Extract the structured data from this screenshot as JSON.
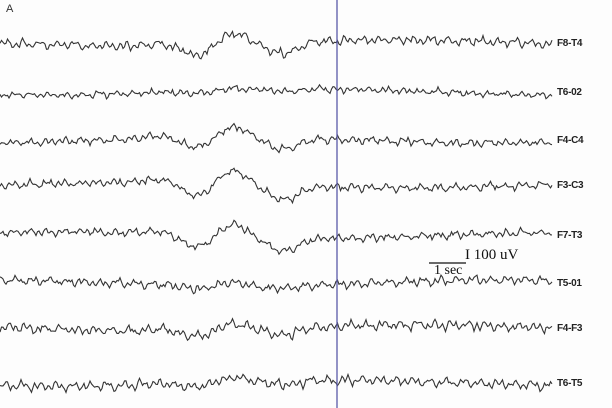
{
  "chart_data": {
    "type": "line",
    "panel_label": "A",
    "series": [
      {
        "name": "F8-T4"
      },
      {
        "name": "T6-02"
      },
      {
        "name": "F4-C4"
      },
      {
        "name": "F3-C3"
      },
      {
        "name": "F7-T3"
      },
      {
        "name": "T5-01"
      },
      {
        "name": "F4-F3"
      },
      {
        "name": "T6-T5"
      }
    ],
    "scale_bar": {
      "amplitude_label": "I 100 uV",
      "time_label": "1 sec"
    },
    "marker_line_color": "#5a5aa8",
    "trace_color": "#333333",
    "grid": false
  }
}
